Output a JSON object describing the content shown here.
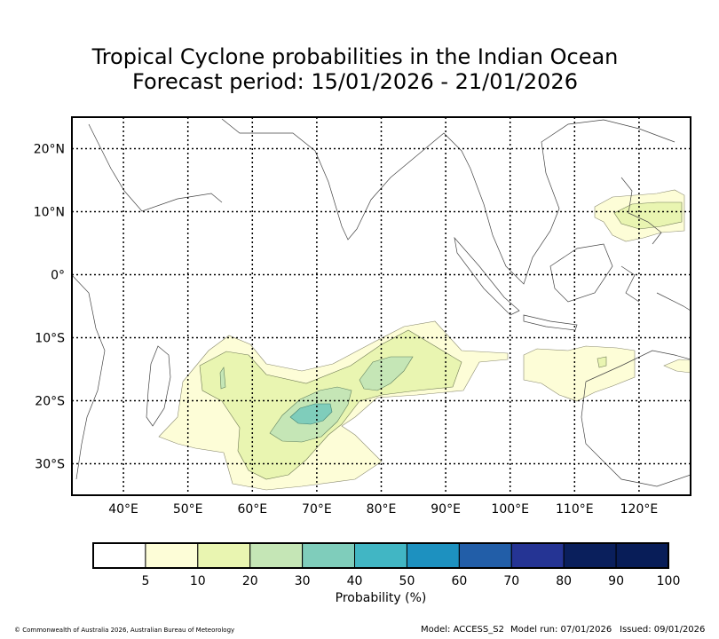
{
  "chart_data": {
    "type": "map",
    "title_line1": "Tropical Cyclone probabilities in the Indian Ocean",
    "title_line2": "Forecast period: 15/01/2026 - 21/01/2026",
    "lon_ticks": [
      "40°E",
      "50°E",
      "60°E",
      "70°E",
      "80°E",
      "90°E",
      "100°E",
      "110°E",
      "120°E"
    ],
    "lon_values": [
      40,
      50,
      60,
      70,
      80,
      90,
      100,
      110,
      120
    ],
    "lat_ticks": [
      "20°N",
      "10°N",
      "0°",
      "10°S",
      "20°S",
      "30°S"
    ],
    "lat_values": [
      20,
      10,
      0,
      -10,
      -20,
      -30
    ],
    "extent": {
      "lon": [
        32,
        128
      ],
      "lat": [
        -35,
        25
      ]
    },
    "colorbar": {
      "label": "Probability (%)",
      "levels": [
        "5",
        "10",
        "20",
        "30",
        "40",
        "50",
        "60",
        "70",
        "80",
        "90",
        "100"
      ],
      "colors": [
        "#ffffff",
        "#fdfdd7",
        "#e9f5b1",
        "#c5e6b6",
        "#7fcdbb",
        "#41b6c4",
        "#1d91c0",
        "#225ea8",
        "#253494",
        "#0a1f5c",
        "#081d58"
      ]
    },
    "regions": [
      {
        "name": "south-indian-ocean-cluster",
        "lon_range": [
          45,
          102
        ],
        "lat_range": [
          -33,
          -8
        ],
        "max_probability_band": "30-40"
      },
      {
        "name": "south-of-java-region",
        "lon_range": [
          105,
          117
        ],
        "lat_range": [
          -20,
          -12
        ],
        "max_probability_band": "10-20"
      },
      {
        "name": "philippines-region",
        "lon_range": [
          113,
          127
        ],
        "lat_range": [
          5,
          13
        ],
        "max_probability_band": "10-20"
      },
      {
        "name": "timor-sea-region",
        "lon_range": [
          122,
          128
        ],
        "lat_range": [
          -17,
          -14
        ],
        "max_probability_band": "10-20"
      }
    ]
  },
  "footer": {
    "copyright": "© Commonwealth of Australia 2026, Australian Bureau of Meteorology",
    "model": "Model: ACCESS_S2",
    "model_run": "Model run: 07/01/2026",
    "issued": "Issued: 09/01/2026"
  }
}
